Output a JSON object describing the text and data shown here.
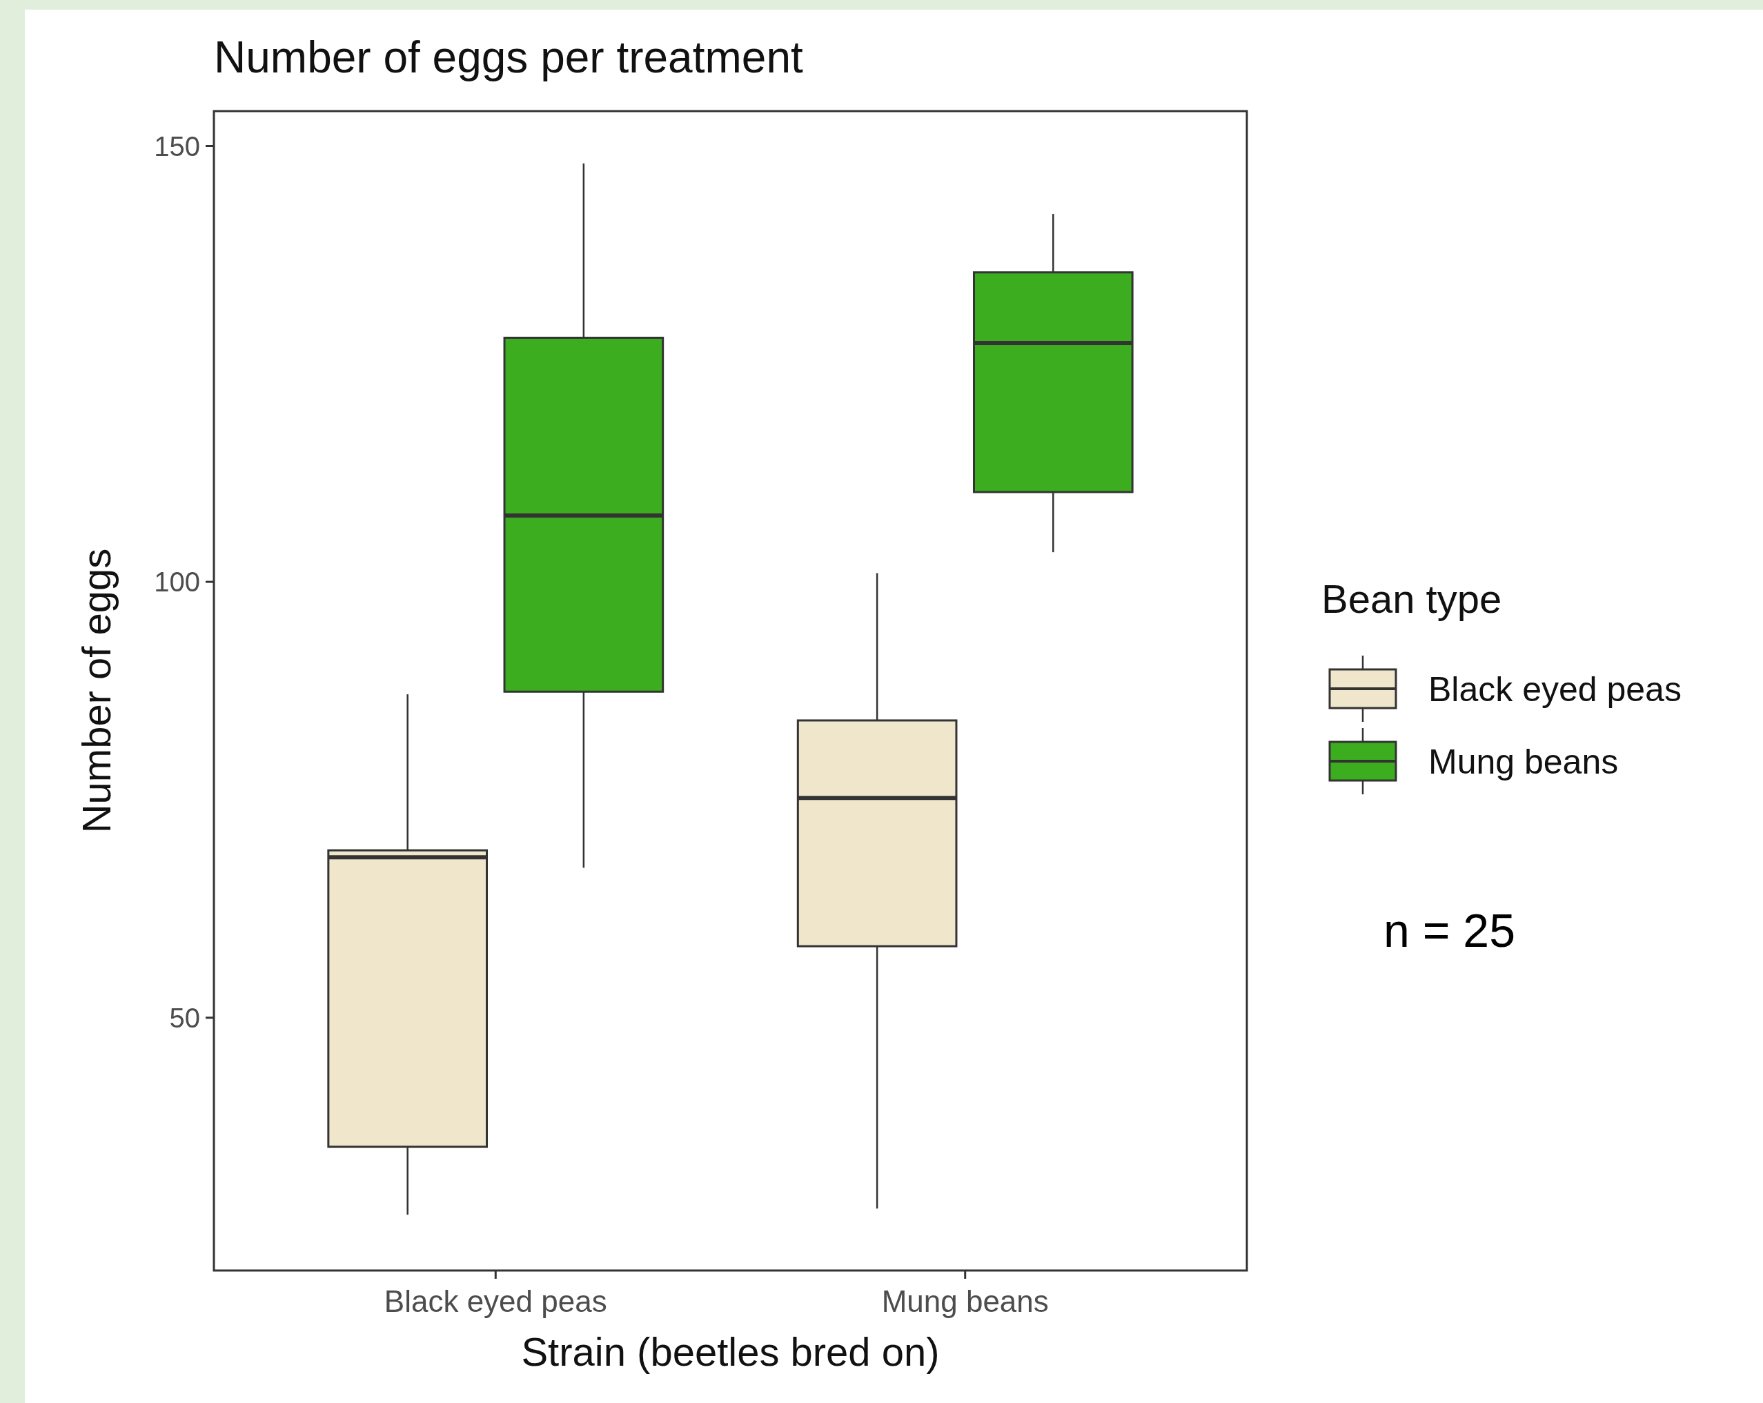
{
  "chart_data": {
    "type": "box",
    "title": "Number of eggs per treatment",
    "xlabel": "Strain (beetles bred on)",
    "ylabel": "Number of eggs",
    "legend_title": "Bean type",
    "categories": [
      "Black eyed peas",
      "Mung beans"
    ],
    "series": [
      {
        "name": "Black eyed peas",
        "color": "#f0e6cc",
        "boxes": [
          {
            "low": 27.4,
            "q1": 35.2,
            "median": 68.4,
            "q3": 69.2,
            "high": 87.1
          },
          {
            "low": 28.1,
            "q1": 58.2,
            "median": 75.2,
            "q3": 84.1,
            "high": 101
          }
        ]
      },
      {
        "name": "Mung beans",
        "color": "#3cad1e",
        "boxes": [
          {
            "low": 67.2,
            "q1": 87.4,
            "median": 107.6,
            "q3": 128,
            "high": 148
          },
          {
            "low": 103.4,
            "q1": 110.3,
            "median": 127.4,
            "q3": 135.5,
            "high": 142.2
          }
        ]
      }
    ],
    "ylim": [
      21,
      154
    ],
    "yticks": [
      50,
      100,
      150
    ],
    "legend": "right",
    "grid": false,
    "annotations": [
      "n = 25"
    ]
  }
}
